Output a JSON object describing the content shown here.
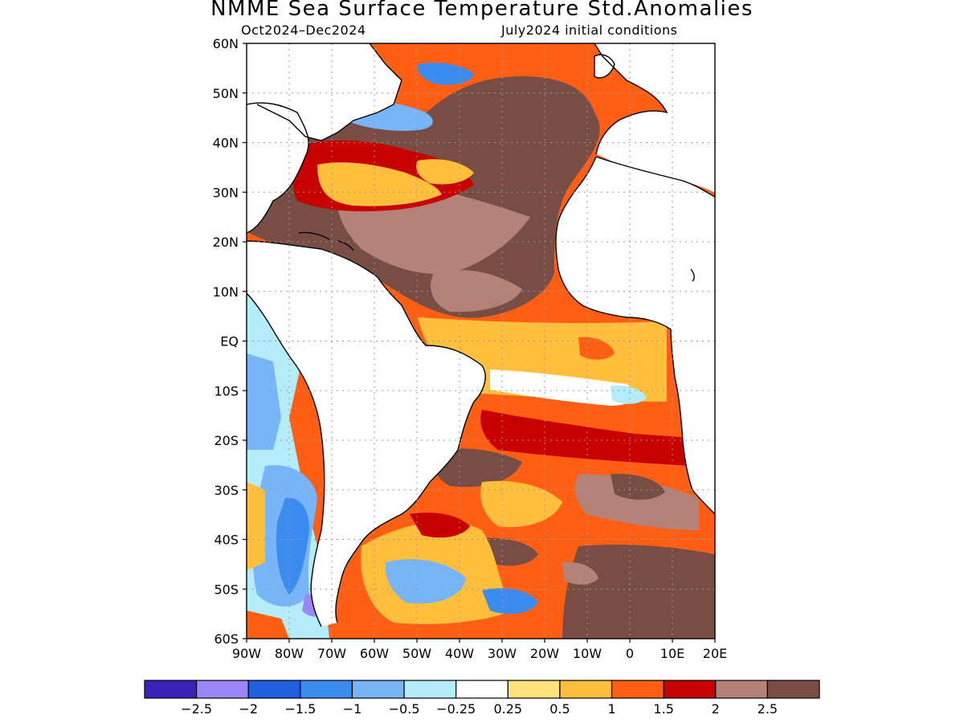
{
  "title": "NMME Sea Surface Temperature Std.Anomalies",
  "subtitle_left": "Oct2024–Dec2024",
  "subtitle_right": "July2024 initial conditions",
  "lat_labels": [
    "60N",
    "50N",
    "40N",
    "30N",
    "20N",
    "10N",
    "EQ",
    "10S",
    "20S",
    "30S",
    "40S",
    "50S",
    "60S"
  ],
  "lon_labels": [
    "90W",
    "80W",
    "70W",
    "60W",
    "50W",
    "40W",
    "30W",
    "20W",
    "10W",
    "0",
    "10E",
    "20E"
  ],
  "colorbar": {
    "colors": [
      "#3a22b8",
      "#9b86f5",
      "#1f5fe0",
      "#3c8cf0",
      "#78b4f8",
      "#b4ecfa",
      "#ffffff",
      "#ffe27a",
      "#ffbe3c",
      "#ff5f14",
      "#c80000",
      "#b48278",
      "#784e44"
    ],
    "labels": [
      "−2.5",
      "−2",
      "−1.5",
      "−1",
      "−0.5",
      "−0.25",
      "0.25",
      "0.5",
      "1",
      "1.5",
      "2",
      "2.5"
    ]
  },
  "map_extent": {
    "lon": [
      -90,
      20
    ],
    "lat": [
      -60,
      60
    ]
  }
}
